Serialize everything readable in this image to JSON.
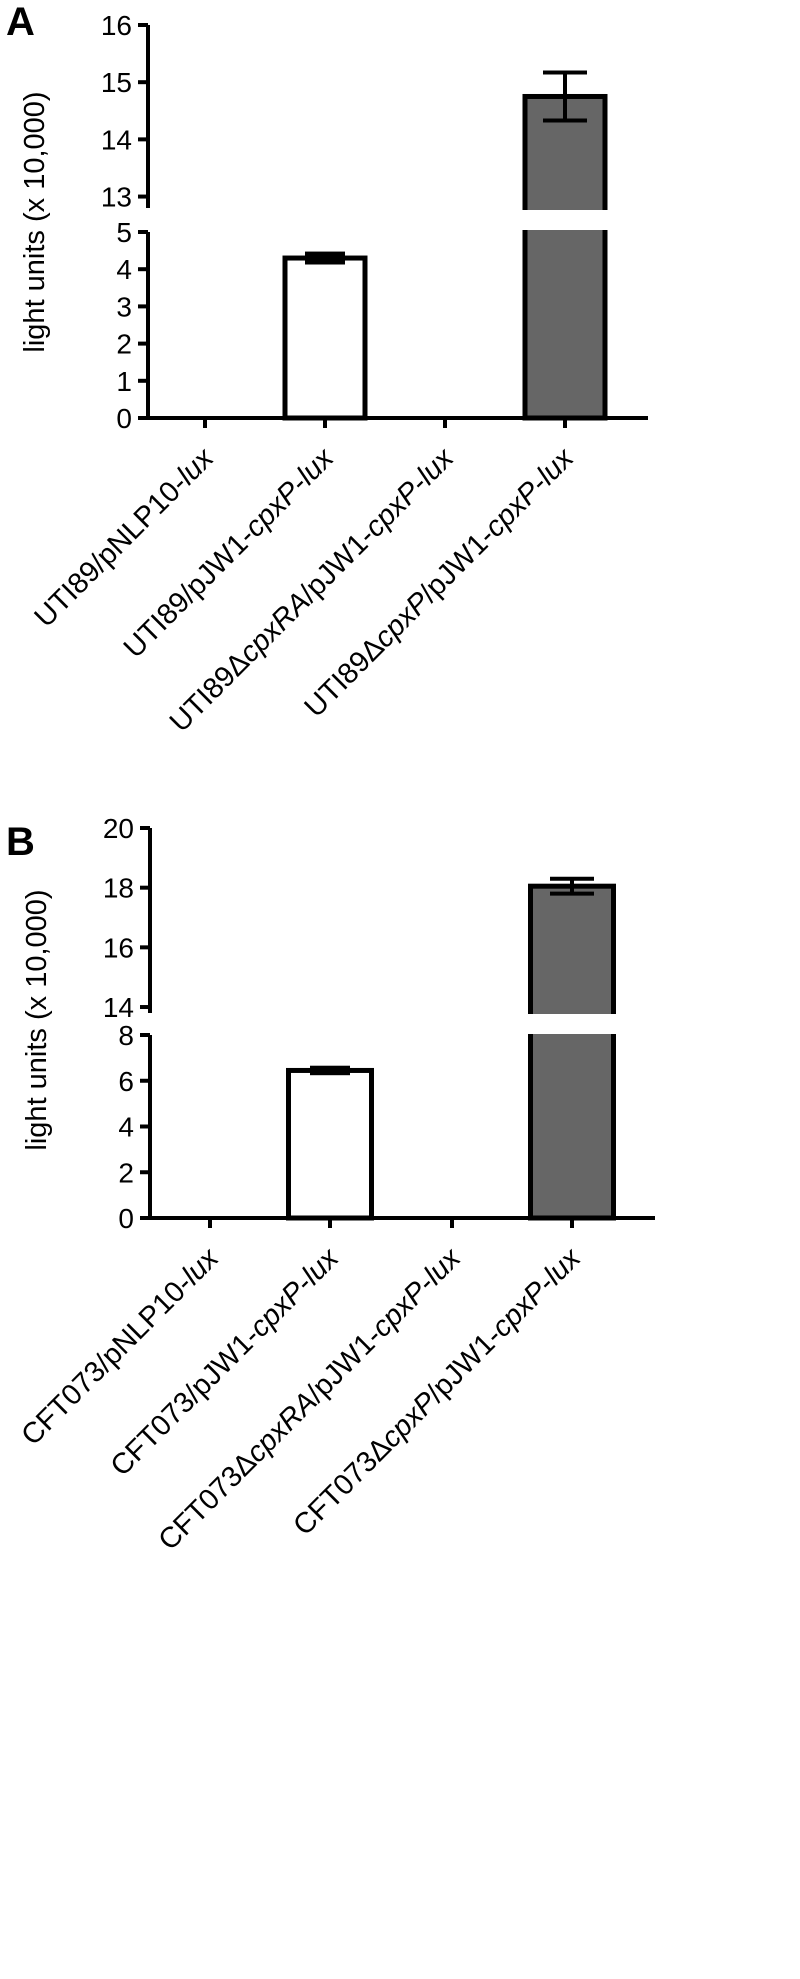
{
  "chart_data": [
    {
      "type": "bar",
      "panel": "A",
      "ylabel": "light units (x 10,000)",
      "axis_break": true,
      "segments": [
        {
          "ylim": [
            0,
            5
          ],
          "ticks": [
            0,
            1,
            2,
            3,
            4,
            5
          ]
        },
        {
          "ylim": [
            12.8,
            16
          ],
          "ticks": [
            13,
            14,
            15,
            16
          ]
        }
      ],
      "categories": [
        {
          "parts": [
            {
              "text": "UTI89/pNLP10-",
              "italic": false
            },
            {
              "text": "lux",
              "italic": true
            }
          ]
        },
        {
          "parts": [
            {
              "text": "UTI89/pJW1-",
              "italic": false
            },
            {
              "text": "cpxP",
              "italic": true
            },
            {
              "text": "-",
              "italic": false
            },
            {
              "text": "lux",
              "italic": true
            }
          ]
        },
        {
          "parts": [
            {
              "text": "UTI89Δ",
              "italic": false
            },
            {
              "text": "cpxRA",
              "italic": true
            },
            {
              "text": "/pJW1-",
              "italic": false
            },
            {
              "text": "cpxP",
              "italic": true
            },
            {
              "text": "-",
              "italic": false
            },
            {
              "text": "lux",
              "italic": true
            }
          ]
        },
        {
          "parts": [
            {
              "text": "UTI89Δ",
              "italic": false
            },
            {
              "text": "cpxP",
              "italic": true
            },
            {
              "text": "/pJW1-",
              "italic": false
            },
            {
              "text": "cpxP",
              "italic": true
            },
            {
              "text": "-",
              "italic": false
            },
            {
              "text": "lux",
              "italic": true
            }
          ]
        }
      ],
      "values": [
        0,
        4.3,
        0,
        14.75
      ],
      "errors": [
        0,
        0.12,
        0,
        0.42
      ],
      "fills": [
        "#ffffff",
        "#ffffff",
        "#ffffff",
        "#666666"
      ]
    },
    {
      "type": "bar",
      "panel": "B",
      "ylabel": "light units (x 10,000)",
      "axis_break": true,
      "segments": [
        {
          "ylim": [
            0,
            8
          ],
          "ticks": [
            0,
            2,
            4,
            6,
            8
          ]
        },
        {
          "ylim": [
            13.8,
            20
          ],
          "ticks": [
            14,
            16,
            18,
            20
          ]
        }
      ],
      "categories": [
        {
          "parts": [
            {
              "text": "CFT073/pNLP10-",
              "italic": false
            },
            {
              "text": "lux",
              "italic": true
            }
          ]
        },
        {
          "parts": [
            {
              "text": "CFT073/pJW1-",
              "italic": false
            },
            {
              "text": "cpxP",
              "italic": true
            },
            {
              "text": "-",
              "italic": false
            },
            {
              "text": "lux",
              "italic": true
            }
          ]
        },
        {
          "parts": [
            {
              "text": "CFT073Δ",
              "italic": false
            },
            {
              "text": "cpxRA",
              "italic": true
            },
            {
              "text": "/pJW1-",
              "italic": false
            },
            {
              "text": "cpxP",
              "italic": true
            },
            {
              "text": "-",
              "italic": false
            },
            {
              "text": "lux",
              "italic": true
            }
          ]
        },
        {
          "parts": [
            {
              "text": "CFT073Δ",
              "italic": false
            },
            {
              "text": "cpxP",
              "italic": true
            },
            {
              "text": "/pJW1-",
              "italic": false
            },
            {
              "text": "cpxP",
              "italic": true
            },
            {
              "text": "-",
              "italic": false
            },
            {
              "text": "lux",
              "italic": true
            }
          ]
        }
      ],
      "values": [
        0,
        6.45,
        0,
        18.05
      ],
      "errors": [
        0,
        0.12,
        0,
        0.25
      ],
      "fills": [
        "#ffffff",
        "#ffffff",
        "#ffffff",
        "#666666"
      ]
    }
  ]
}
